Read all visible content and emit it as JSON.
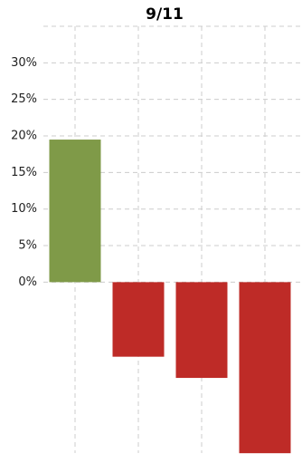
{
  "chart_data": {
    "type": "bar",
    "title": "9/11",
    "categories": [
      null,
      null,
      null,
      null
    ],
    "values": [
      19.5,
      -10.2,
      -13.1,
      -23.4
    ],
    "colors": [
      "#7f9a48",
      "#be2b27",
      "#be2b27",
      "#be2b27"
    ],
    "ylim": [
      -24,
      35
    ],
    "yticks": [
      {
        "value": 0,
        "label": "0%"
      },
      {
        "value": 5,
        "label": "5%"
      },
      {
        "value": 10,
        "label": "10%"
      },
      {
        "value": 15,
        "label": "15%"
      },
      {
        "value": 20,
        "label": "20%"
      },
      {
        "value": 25,
        "label": "25%"
      },
      {
        "value": 30,
        "label": "30%"
      }
    ],
    "grid": true
  }
}
